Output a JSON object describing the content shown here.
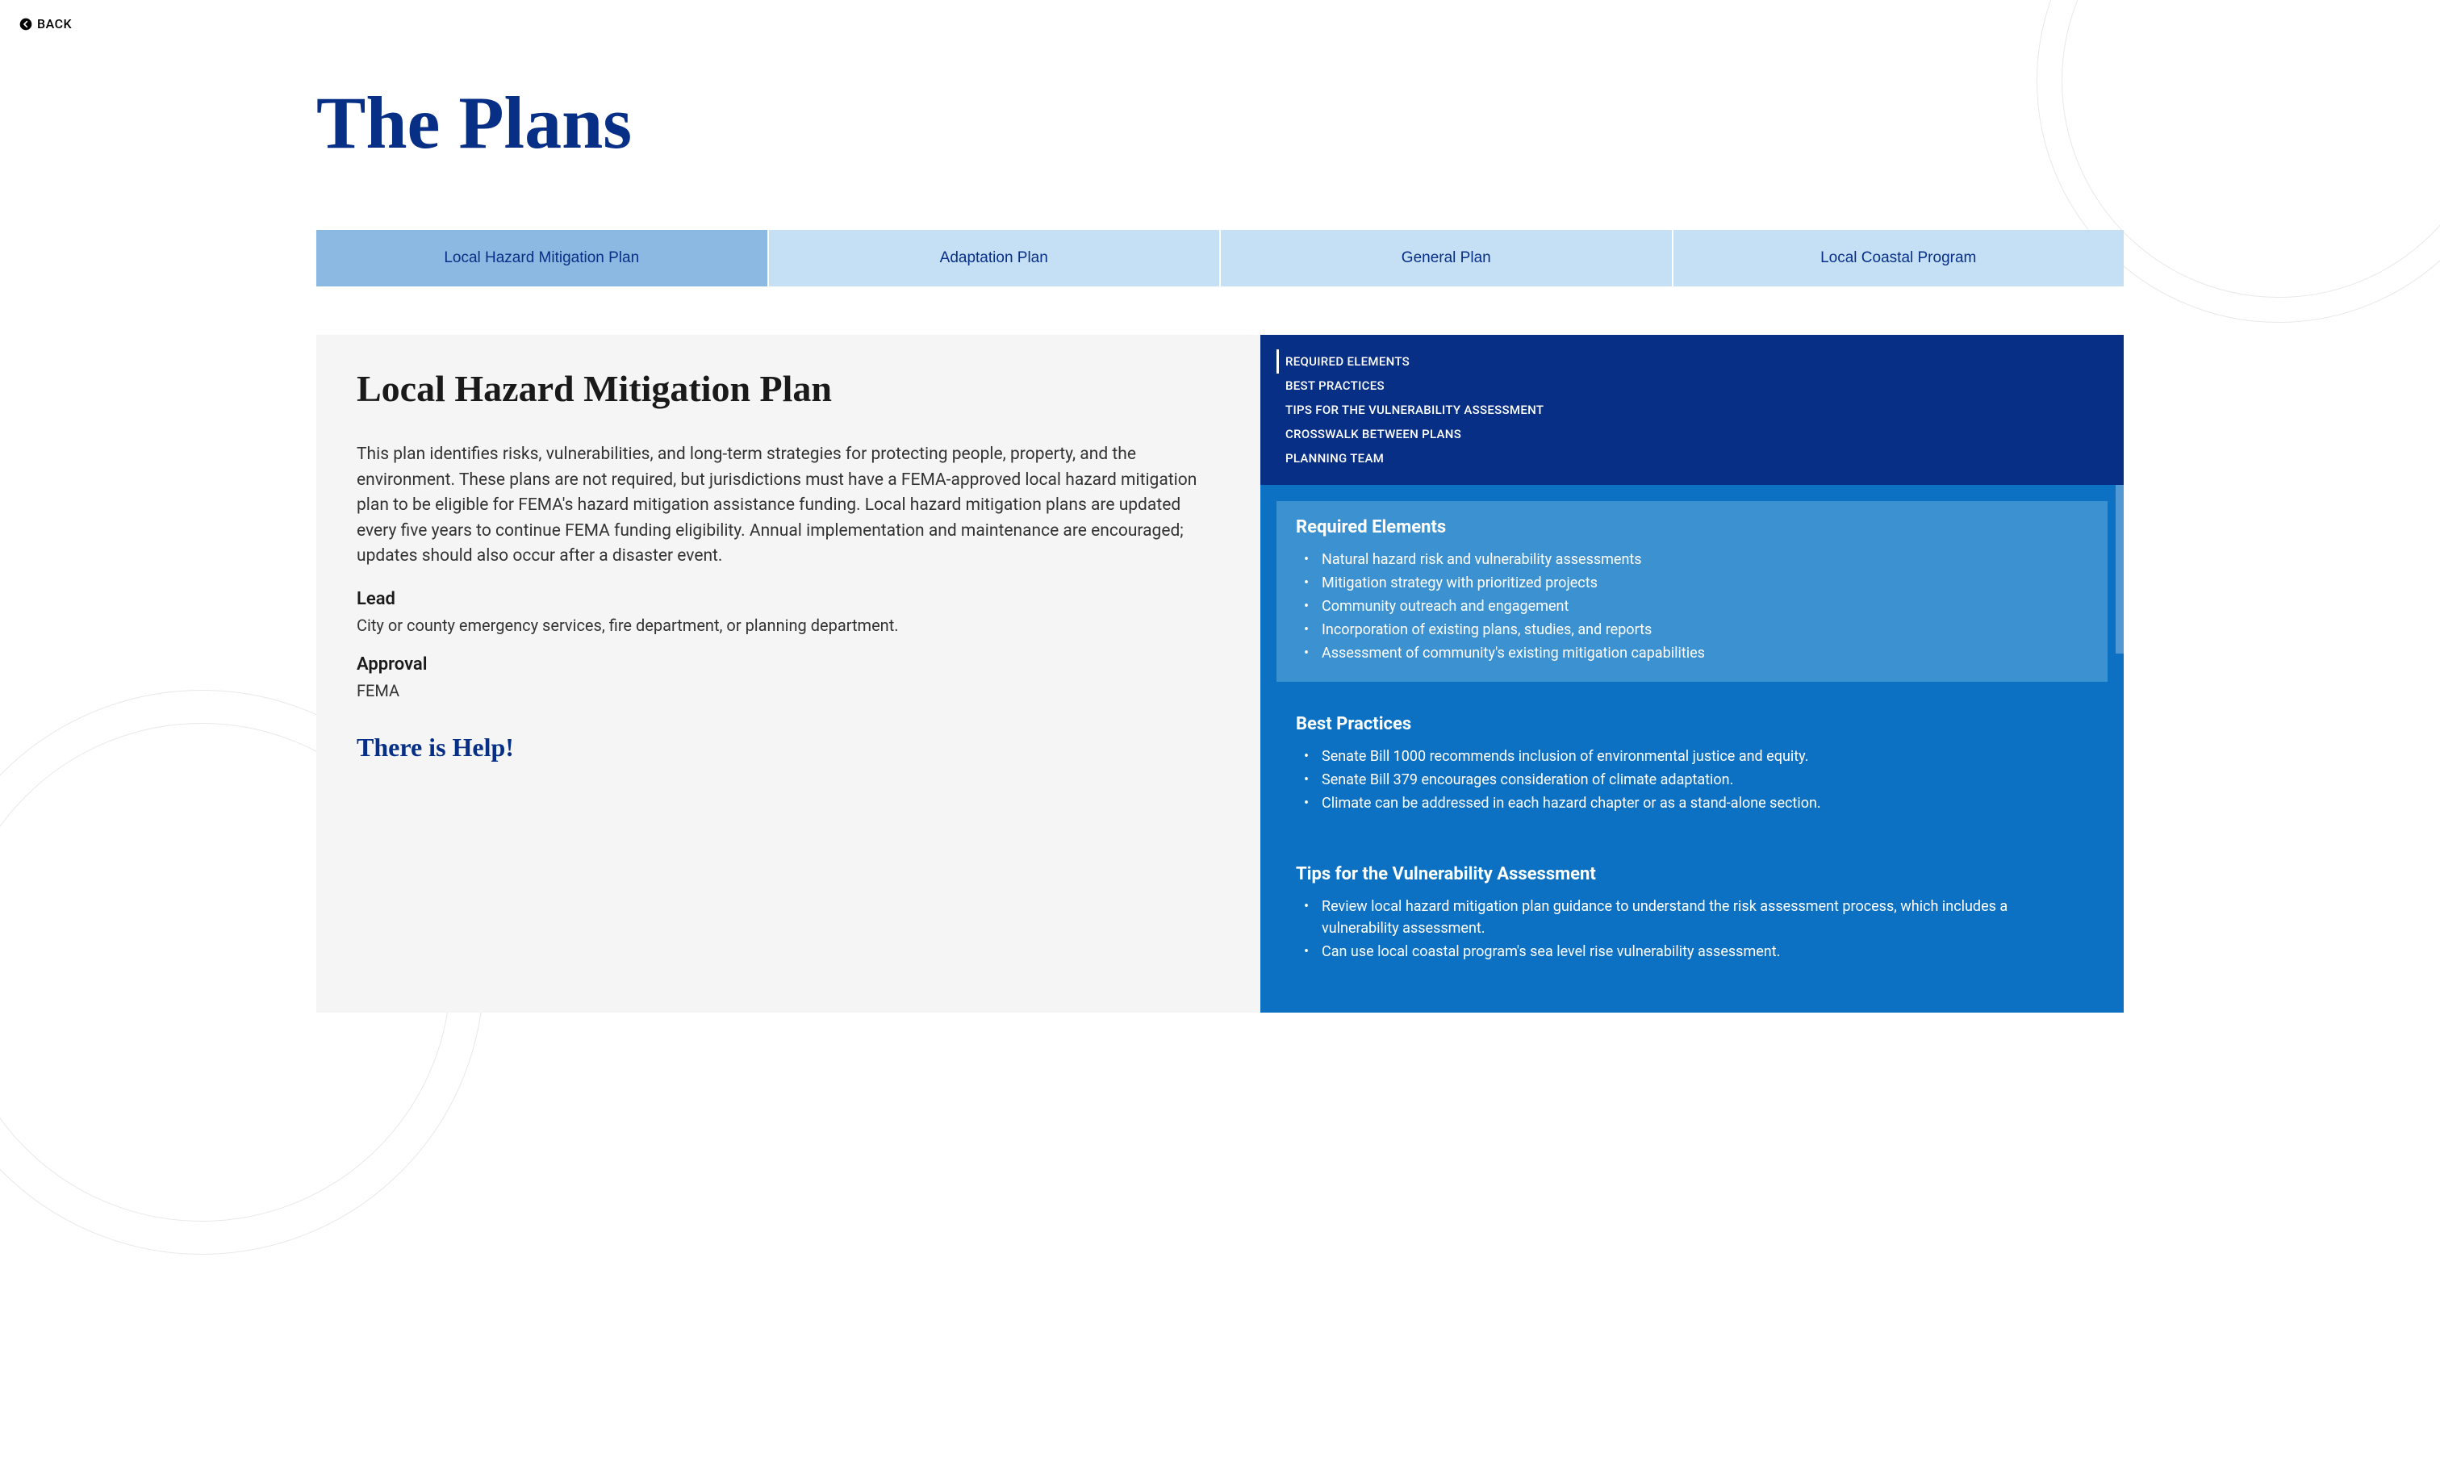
{
  "back_label": "BACK",
  "page_title": "The Plans",
  "tabs": [
    {
      "label": "Local Hazard Mitigation Plan",
      "active": true
    },
    {
      "label": "Adaptation Plan",
      "active": false
    },
    {
      "label": "General Plan",
      "active": false
    },
    {
      "label": "Local Coastal Program",
      "active": false
    }
  ],
  "left_panel": {
    "plan_title": "Local Hazard Mitigation Plan",
    "description": "This plan identifies risks, vulnerabilities, and long-term strategies for protecting people, property, and the environment. These plans are not required, but jurisdictions must have a FEMA-approved local hazard mitigation plan to be eligible for FEMA's hazard mitigation assistance funding. Local hazard mitigation plans are updated every five years to continue FEMA funding eligibility. Annual implementation and maintenance are encouraged; updates should also occur after a disaster event.",
    "lead_label": "Lead",
    "lead_text": "City or county emergency services, fire department, or planning department.",
    "approval_label": "Approval",
    "approval_text": "FEMA",
    "help_title": "There is Help!"
  },
  "nav_items": [
    {
      "label": "REQUIRED ELEMENTS",
      "active": true
    },
    {
      "label": "BEST PRACTICES",
      "active": false
    },
    {
      "label": "TIPS FOR THE VULNERABILITY ASSESSMENT",
      "active": false
    },
    {
      "label": "CROSSWALK BETWEEN PLANS",
      "active": false
    },
    {
      "label": "PLANNING TEAM",
      "active": false
    }
  ],
  "sections": [
    {
      "heading": "Required Elements",
      "highlighted": true,
      "items": [
        "Natural hazard risk and vulnerability assessments",
        "Mitigation strategy with prioritized projects",
        "Community outreach and engagement",
        "Incorporation of existing plans, studies, and reports",
        "Assessment of community's existing mitigation capabilities"
      ]
    },
    {
      "heading": "Best Practices",
      "highlighted": false,
      "items": [
        "Senate Bill 1000 recommends inclusion of environmental justice and equity.",
        "Senate Bill 379 encourages consideration of climate adaptation.",
        "Climate can be addressed in each hazard chapter or as a stand-alone section."
      ]
    },
    {
      "heading": "Tips for the Vulnerability Assessment",
      "highlighted": false,
      "items": [
        "Review local hazard mitigation plan guidance to understand the risk assessment process, which includes a vulnerability assessment.",
        "Can use local coastal program's sea level rise vulnerability assessment."
      ]
    }
  ],
  "colors": {
    "primary_dark": "#072f86",
    "tab_inactive": "#c5e0f5",
    "tab_active": "#8cb9e2",
    "section_bg": "#0c71c3",
    "section_highlight": "#3c91d1",
    "left_bg": "#f5f5f5"
  }
}
